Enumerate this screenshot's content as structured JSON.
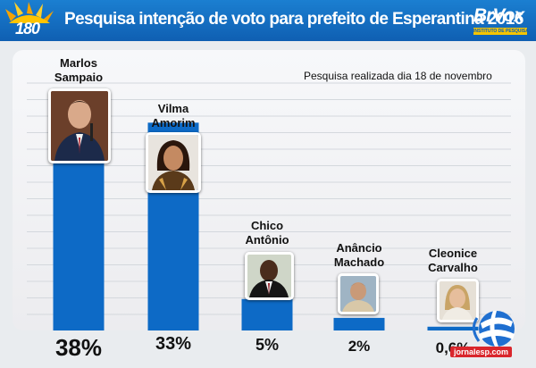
{
  "header": {
    "title": "Pesquisa intenção de voto para prefeito de Esperantina 2016",
    "logo_left_text": "180",
    "logo_right_text": "BrVox",
    "logo_right_subtext": "INSTITUTO DE PESQUISA"
  },
  "subtitle": "Pesquisa realizada dia 18 de novembro",
  "footer": {
    "url": "jornalesp.com"
  },
  "colors": {
    "header": "#1474c8",
    "bar": "#0d6ac6",
    "background": "#e9ecef"
  },
  "chart_data": {
    "type": "bar",
    "categories": [
      {
        "line1": "Marlos",
        "line2": "Sampaio"
      },
      {
        "line1": "Vilma",
        "line2": "Amorim"
      },
      {
        "line1": "Chico",
        "line2": "Antônio"
      },
      {
        "line1": "Anâncio",
        "line2": "Machado"
      },
      {
        "line1": "Cleonice",
        "line2": "Carvalho"
      }
    ],
    "values": [
      38,
      33,
      5,
      2,
      0.6
    ],
    "value_labels": [
      "38%",
      "33%",
      "5%",
      "2%",
      "0,6%"
    ],
    "title": "Pesquisa intenção de voto para prefeito de Esperantina 2016",
    "ylim": [
      0,
      40
    ],
    "grid": true
  }
}
